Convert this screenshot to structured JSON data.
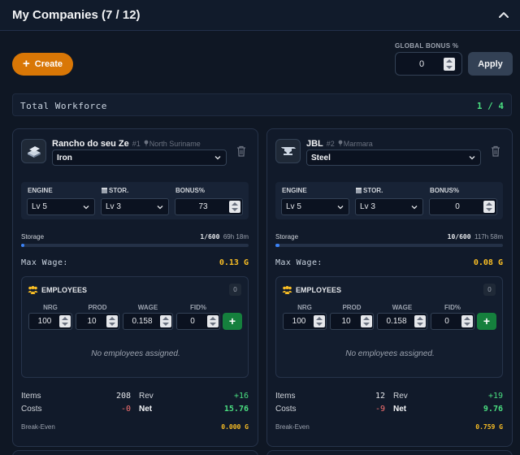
{
  "header": {
    "title": "My Companies (7 / 12)"
  },
  "toolbar": {
    "create_label": "Create",
    "global_bonus_label": "GLOBAL BONUS %",
    "global_bonus_value": "0",
    "apply_label": "Apply"
  },
  "workforce": {
    "label": "Total Workforce",
    "value": "1 / 4"
  },
  "companies": [
    {
      "name": "Rancho do seu Ze",
      "rank": "#1",
      "location": "North Suriname",
      "resource": "Iron",
      "upgrades": {
        "engine_label": "ENGINE",
        "engine_value": "Lv 5",
        "storage_label": "STOR.",
        "storage_value": "Lv 3",
        "bonus_label": "BONUS%",
        "bonus_value": "73"
      },
      "storage": {
        "label": "Storage",
        "amount": "1/600",
        "time": "69h 18m",
        "fill_fraction": 0.0017
      },
      "max_wage": {
        "label": "Max Wage:",
        "value": "0.13 G"
      },
      "employees": {
        "title": "EMPLOYEES",
        "count": "0",
        "headers": [
          "NRG",
          "PROD",
          "WAGE",
          "FID%"
        ],
        "inputs": [
          "100",
          "10",
          "0.158",
          "0"
        ],
        "add_label": "+",
        "empty_text": "No employees assigned."
      },
      "finance": {
        "items_label": "Items",
        "items_value": "208",
        "rev_label": "Rev",
        "rev_value": "+16",
        "costs_label": "Costs",
        "costs_value": "-0",
        "net_label": "Net",
        "net_value": "15.76"
      },
      "break_even": {
        "label": "Break-Even",
        "value": "0.000 G"
      }
    },
    {
      "name": "JBL",
      "rank": "#2",
      "location": "Marmara",
      "resource": "Steel",
      "upgrades": {
        "engine_label": "ENGINE",
        "engine_value": "Lv 5",
        "storage_label": "STOR.",
        "storage_value": "Lv 3",
        "bonus_label": "BONUS%",
        "bonus_value": "0"
      },
      "storage": {
        "label": "Storage",
        "amount": "10/600",
        "time": "117h 58m",
        "fill_fraction": 0.0167
      },
      "max_wage": {
        "label": "Max Wage:",
        "value": "0.08 G"
      },
      "employees": {
        "title": "EMPLOYEES",
        "count": "0",
        "headers": [
          "NRG",
          "PROD",
          "WAGE",
          "FID%"
        ],
        "inputs": [
          "100",
          "10",
          "0.158",
          "0"
        ],
        "add_label": "+",
        "empty_text": "No employees assigned."
      },
      "finance": {
        "items_label": "Items",
        "items_value": "12",
        "rev_label": "Rev",
        "rev_value": "+19",
        "costs_label": "Costs",
        "costs_value": "-9",
        "net_label": "Net",
        "net_value": "9.76"
      },
      "break_even": {
        "label": "Break-Even",
        "value": "0.759 G"
      }
    }
  ],
  "colors": {
    "accent": "#d97706",
    "positive": "#4ade80",
    "negative": "#f87171",
    "gold": "#fbbf24",
    "add_button": "#15803d"
  }
}
